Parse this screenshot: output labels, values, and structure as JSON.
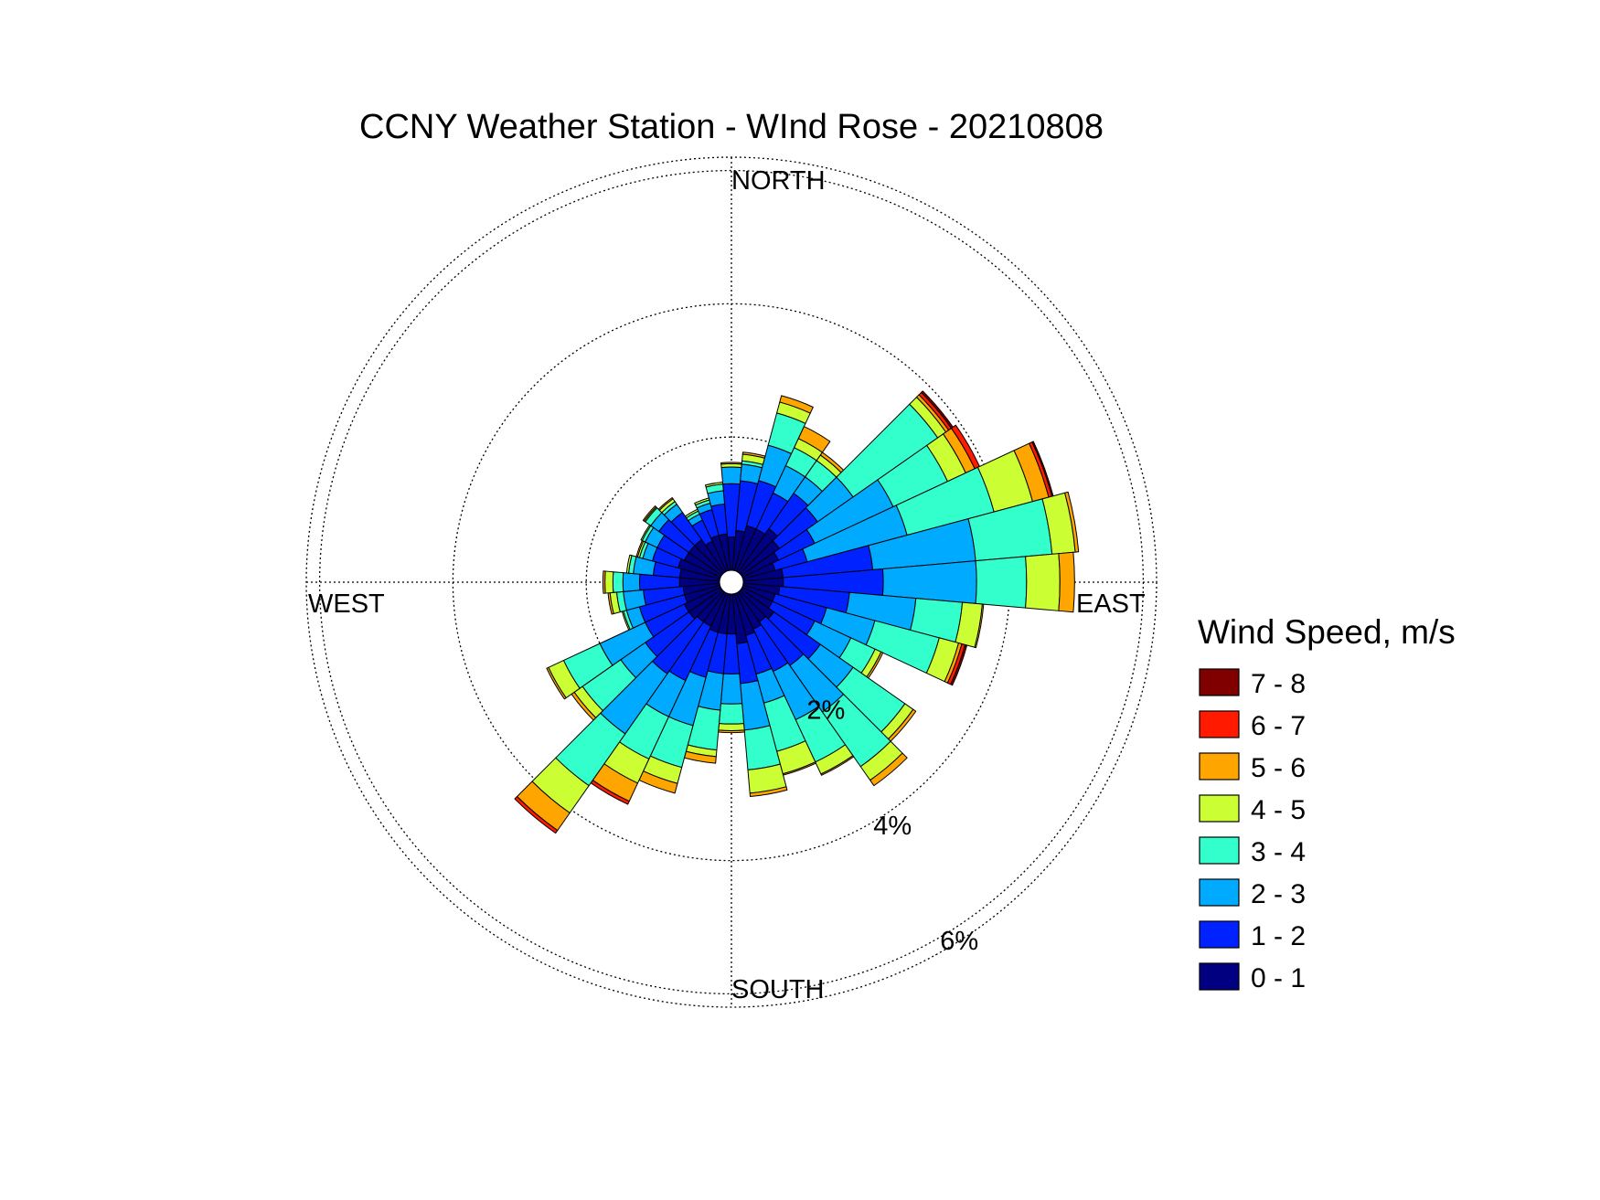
{
  "chart_data": {
    "type": "polar-stacked-bar",
    "title": "CCNY Weather Station - WInd Rose - 20210808",
    "compass": {
      "north": "NORTH",
      "east": "EAST",
      "south": "SOUTH",
      "west": "WEST"
    },
    "rings": [
      {
        "value": 2,
        "label": "2%"
      },
      {
        "value": 4,
        "label": "4%"
      },
      {
        "value": 6,
        "label": "6%"
      }
    ],
    "rlim": [
      0,
      6.2
    ],
    "grid": true,
    "legend": {
      "title": "Wind Speed, m/s",
      "placement": "right",
      "entries": [
        {
          "label": "7 - 8",
          "color": "#800000"
        },
        {
          "label": "6 - 7",
          "color": "#ff1a00"
        },
        {
          "label": "5 - 6",
          "color": "#ffa500"
        },
        {
          "label": "4 - 5",
          "color": "#ccff33"
        },
        {
          "label": "3 - 4",
          "color": "#33ffcc"
        },
        {
          "label": "2 - 3",
          "color": "#00aaff"
        },
        {
          "label": "1 - 2",
          "color": "#0022ff"
        },
        {
          "label": "0 - 1",
          "color": "#000080"
        }
      ]
    },
    "bins": [
      "0 - 1",
      "1 - 2",
      "2 - 3",
      "3 - 4",
      "4 - 5",
      "5 - 6",
      "6 - 7",
      "7 - 8"
    ],
    "direction_step_deg": 10,
    "directions_deg": [
      0,
      10,
      20,
      30,
      40,
      50,
      60,
      70,
      80,
      90,
      100,
      110,
      120,
      130,
      140,
      150,
      160,
      170,
      180,
      190,
      200,
      210,
      220,
      230,
      240,
      250,
      260,
      270,
      280,
      290,
      300,
      310,
      320,
      330,
      340,
      350
    ],
    "cumulative_percent": [
      [
        0.5,
        1.3,
        1.55,
        1.55,
        1.6,
        1.62,
        1.62,
        1.62
      ],
      [
        0.6,
        1.35,
        1.6,
        1.65,
        1.75,
        1.78,
        1.78,
        1.78
      ],
      [
        0.7,
        1.4,
        1.95,
        2.45,
        2.62,
        2.72,
        2.72,
        2.72
      ],
      [
        0.7,
        1.3,
        1.75,
        2.05,
        2.2,
        2.4,
        2.4,
        2.4
      ],
      [
        0.8,
        1.45,
        1.75,
        2.05,
        2.15,
        2.2,
        2.2,
        2.2
      ],
      [
        0.7,
        1.4,
        2.05,
        3.6,
        3.75,
        3.8,
        3.85,
        3.88
      ],
      [
        0.6,
        1.2,
        2.5,
        3.4,
        3.7,
        3.85,
        3.93,
        3.93
      ],
      [
        0.5,
        1.0,
        2.55,
        3.9,
        4.5,
        4.75,
        4.8,
        4.82
      ],
      [
        0.6,
        1.95,
        3.5,
        4.65,
        5.0,
        5.05,
        5.05,
        5.05
      ],
      [
        0.6,
        2.1,
        3.5,
        4.25,
        4.75,
        4.97,
        4.97,
        4.97
      ],
      [
        0.55,
        1.6,
        2.6,
        3.3,
        3.6,
        3.62,
        3.62,
        3.62
      ],
      [
        0.5,
        1.3,
        2.05,
        3.05,
        3.35,
        3.4,
        3.45,
        3.48
      ],
      [
        0.5,
        1.2,
        1.8,
        2.2,
        2.3,
        2.33,
        2.33,
        2.33
      ],
      [
        0.6,
        1.45,
        2.05,
        3.0,
        3.15,
        3.2,
        3.2,
        3.2
      ],
      [
        0.55,
        1.35,
        2.2,
        3.2,
        3.45,
        3.55,
        3.55,
        3.55
      ],
      [
        0.6,
        1.3,
        2.1,
        2.8,
        3.0,
        3.02,
        3.02,
        3.02
      ],
      [
        0.65,
        1.25,
        1.7,
        2.45,
        2.8,
        2.82,
        2.82,
        2.82
      ],
      [
        0.75,
        1.35,
        2.05,
        2.65,
        3.0,
        3.05,
        3.05,
        3.05
      ],
      [
        0.6,
        1.2,
        1.65,
        1.95,
        2.05,
        2.08,
        2.08,
        2.08
      ],
      [
        0.6,
        1.2,
        1.75,
        2.35,
        2.45,
        2.55,
        2.55,
        2.55
      ],
      [
        0.6,
        1.3,
        2.05,
        2.7,
        2.95,
        3.1,
        3.1,
        3.1
      ],
      [
        0.55,
        1.45,
        2.05,
        2.75,
        3.15,
        3.45,
        3.5,
        3.5
      ],
      [
        0.55,
        1.5,
        2.6,
        3.55,
        4.05,
        4.37,
        4.42,
        4.42
      ],
      [
        0.6,
        1.4,
        1.85,
        2.55,
        2.7,
        2.75,
        2.75,
        2.75
      ],
      [
        0.6,
        1.25,
        2.0,
        2.6,
        2.85,
        2.88,
        2.88,
        2.88
      ],
      [
        0.55,
        1.25,
        1.45,
        1.5,
        1.52,
        1.52,
        1.52,
        1.52
      ],
      [
        0.55,
        1.15,
        1.45,
        1.55,
        1.65,
        1.68,
        1.68,
        1.68
      ],
      [
        0.6,
        1.2,
        1.45,
        1.6,
        1.72,
        1.75,
        1.75,
        1.75
      ],
      [
        0.6,
        1.0,
        1.3,
        1.37,
        1.4,
        1.4,
        1.4,
        1.4
      ],
      [
        0.65,
        1.05,
        1.2,
        1.25,
        1.28,
        1.3,
        1.3,
        1.3
      ],
      [
        0.6,
        1.05,
        1.25,
        1.3,
        1.32,
        1.32,
        1.32,
        1.32
      ],
      [
        0.6,
        1.15,
        1.3,
        1.4,
        1.42,
        1.44,
        1.44,
        1.44
      ],
      [
        0.6,
        1.1,
        1.25,
        1.3,
        1.35,
        1.37,
        1.37,
        1.37
      ],
      [
        0.5,
        0.85,
        0.95,
        1.0,
        1.03,
        1.03,
        1.03,
        1.03
      ],
      [
        0.55,
        0.95,
        1.05,
        1.1,
        1.13,
        1.13,
        1.13,
        1.13
      ],
      [
        0.55,
        1.0,
        1.2,
        1.3,
        1.33,
        1.33,
        1.33,
        1.33
      ]
    ]
  }
}
